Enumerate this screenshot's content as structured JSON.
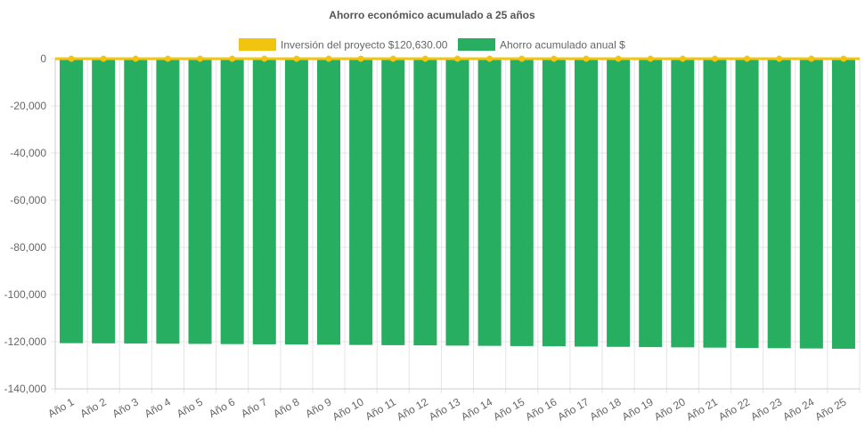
{
  "chart_data": {
    "type": "bar",
    "title": "Ahorro económico acumulado a 25 años",
    "categories": [
      "Año 1",
      "Año 2",
      "Año 3",
      "Año 4",
      "Año 5",
      "Año 6",
      "Año 7",
      "Año 8",
      "Año 9",
      "Año 10",
      "Año 11",
      "Año 12",
      "Año 13",
      "Año 14",
      "Año 15",
      "Año 16",
      "Año 17",
      "Año 18",
      "Año 19",
      "Año 20",
      "Año 21",
      "Año 22",
      "Año 23",
      "Año 24",
      "Año 25"
    ],
    "series": [
      {
        "name": "Inversión del proyecto $120,630.00",
        "type": "line",
        "color": "#f1c40f",
        "values": [
          0,
          0,
          0,
          0,
          0,
          0,
          0,
          0,
          0,
          0,
          0,
          0,
          0,
          0,
          0,
          0,
          0,
          0,
          0,
          0,
          0,
          0,
          0,
          0,
          0
        ]
      },
      {
        "name": "Ahorro acumulado anual $",
        "type": "bar",
        "color": "#27ae60",
        "values": [
          -120630,
          -120700,
          -120780,
          -120860,
          -120940,
          -121020,
          -121110,
          -121200,
          -121290,
          -121380,
          -121470,
          -121560,
          -121660,
          -121760,
          -121860,
          -121960,
          -122070,
          -122180,
          -122290,
          -122400,
          -122520,
          -122640,
          -122760,
          -122880,
          -123000
        ]
      }
    ],
    "ylim": [
      -140000,
      0
    ],
    "yticks": [
      0,
      -20000,
      -40000,
      -60000,
      -80000,
      -100000,
      -120000,
      -140000
    ],
    "ytick_labels": [
      "0",
      "-20,000",
      "-40,000",
      "-60,000",
      "-80,000",
      "-100,000",
      "-120,000",
      "-140,000"
    ],
    "xlabel": "",
    "ylabel": "",
    "grid": true,
    "legend_position": "top"
  }
}
